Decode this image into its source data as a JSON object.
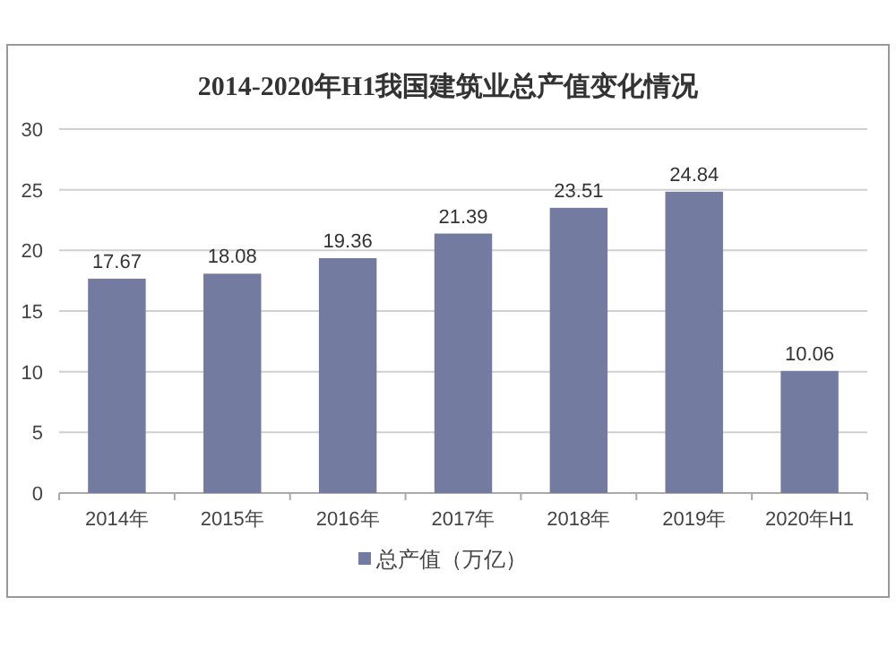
{
  "chart_data": {
    "type": "bar",
    "title": "2014-2020年H1我国建筑业总产值变化情况",
    "categories": [
      "2014年",
      "2015年",
      "2016年",
      "2017年",
      "2018年",
      "2019年",
      "2020年H1"
    ],
    "series": [
      {
        "name": "总产值（万亿）",
        "color": "#737ca0",
        "values": [
          17.67,
          18.08,
          19.36,
          21.39,
          23.51,
          24.84,
          10.06
        ]
      }
    ],
    "ylim": [
      0,
      30
    ],
    "yticks": [
      0,
      5,
      10,
      15,
      20,
      25,
      30
    ],
    "grid": "y",
    "legend": "bottom",
    "data_labels": true
  }
}
